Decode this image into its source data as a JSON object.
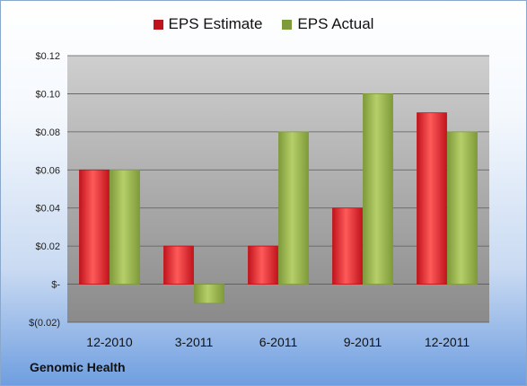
{
  "company": "Genomic Health",
  "legend": {
    "estimate": "EPS Estimate",
    "actual": "EPS Actual"
  },
  "colors": {
    "estimate": "#c0141c",
    "estimate_light": "#ff5a5a",
    "actual": "#7f9a3a",
    "actual_light": "#b6cf6a"
  },
  "chart_data": {
    "type": "bar",
    "categories": [
      "12-2010",
      "3-2011",
      "6-2011",
      "9-2011",
      "12-2011"
    ],
    "series": [
      {
        "name": "EPS Estimate",
        "values": [
          0.06,
          0.02,
          0.02,
          0.04,
          0.09
        ]
      },
      {
        "name": "EPS Actual",
        "values": [
          0.06,
          -0.01,
          0.08,
          0.1,
          0.08
        ]
      }
    ],
    "ylim": [
      -0.02,
      0.12
    ],
    "yticks": [
      -0.02,
      0,
      0.02,
      0.04,
      0.06,
      0.08,
      0.1,
      0.12
    ],
    "ytick_labels": [
      "$(0.02)",
      "$-",
      "$0.02",
      "$0.04",
      "$0.06",
      "$0.08",
      "$0.10",
      "$0.12"
    ],
    "grid": true,
    "legend_position": "top"
  }
}
